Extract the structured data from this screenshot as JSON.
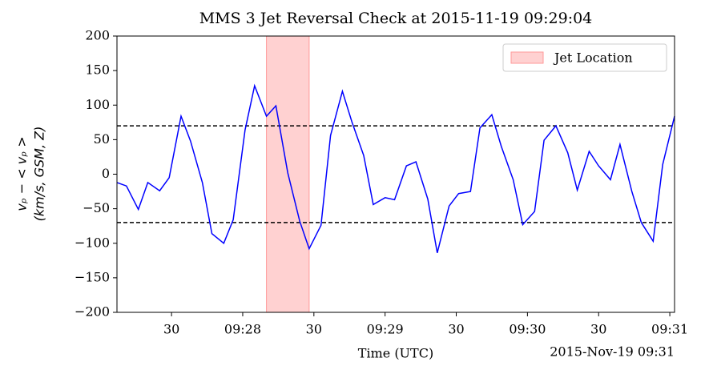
{
  "chart_data": {
    "type": "line",
    "title": "MMS 3 Jet Reversal Check at 2015-11-19 09:29:04",
    "xlabel": "Time (UTC)",
    "ylabel": [
      "vₚ − < vₚ >",
      "(km/s, GSM, Z)"
    ],
    "x_offset_label": "2015-Nov-19 09:31",
    "x": [
      "09:27:07",
      "09:27:11",
      "09:27:16",
      "09:27:20",
      "09:27:25",
      "09:27:29",
      "09:27:34",
      "09:27:38",
      "09:27:43",
      "09:27:47",
      "09:27:52",
      "09:27:56",
      "09:28:01",
      "09:28:05",
      "09:28:10",
      "09:28:14",
      "09:28:19",
      "09:28:24",
      "09:28:28",
      "09:28:33",
      "09:28:37",
      "09:28:42",
      "09:28:46",
      "09:28:51",
      "09:28:55",
      "09:29:00",
      "09:29:04",
      "09:29:09",
      "09:29:13",
      "09:29:18",
      "09:29:22",
      "09:29:27",
      "09:29:31",
      "09:29:36",
      "09:29:40",
      "09:29:45",
      "09:29:49",
      "09:29:54",
      "09:29:58",
      "09:30:03",
      "09:30:07",
      "09:30:12",
      "09:30:17",
      "09:30:21",
      "09:30:26",
      "09:30:30",
      "09:30:35",
      "09:30:39",
      "09:30:44",
      "09:30:48",
      "09:30:53",
      "09:30:57",
      "09:31:02"
    ],
    "values": [
      -12,
      -17,
      -51,
      -12,
      -24,
      -5,
      84,
      48,
      -12,
      -86,
      -100,
      -66,
      64,
      128,
      84,
      99,
      2,
      -68,
      -108,
      -74,
      56,
      120,
      76,
      27,
      -44,
      -34,
      -37,
      12,
      18,
      -36,
      -114,
      -46,
      -28,
      -25,
      67,
      86,
      40,
      -8,
      -73,
      -54,
      49,
      70,
      31,
      -23,
      33,
      12,
      -8,
      43,
      -25,
      -70,
      -97,
      14,
      84
    ],
    "color": "#0000ff",
    "hlines": [
      70,
      -70
    ],
    "hline_color": "#000000",
    "span": {
      "name": "Jet Location",
      "start": "09:28:10",
      "end": "09:28:28",
      "color": "#ff9999"
    },
    "legend": "upper right",
    "xlim": [
      "09:27:07",
      "09:31:02"
    ],
    "xticks": [
      {
        "value": "09:27:30",
        "label": "30"
      },
      {
        "value": "09:28:00",
        "label": "09:28"
      },
      {
        "value": "09:28:30",
        "label": "30"
      },
      {
        "value": "09:29:00",
        "label": "09:29"
      },
      {
        "value": "09:29:30",
        "label": "30"
      },
      {
        "value": "09:30:00",
        "label": "09:30"
      },
      {
        "value": "09:30:30",
        "label": "30"
      },
      {
        "value": "09:31:00",
        "label": "09:31"
      }
    ],
    "ylim": [
      -200,
      200
    ],
    "yticks": [
      {
        "value": -200,
        "label": "−200"
      },
      {
        "value": -150,
        "label": "−150"
      },
      {
        "value": -100,
        "label": "−100"
      },
      {
        "value": -50,
        "label": "−50"
      },
      0,
      50,
      100,
      150,
      200
    ]
  }
}
